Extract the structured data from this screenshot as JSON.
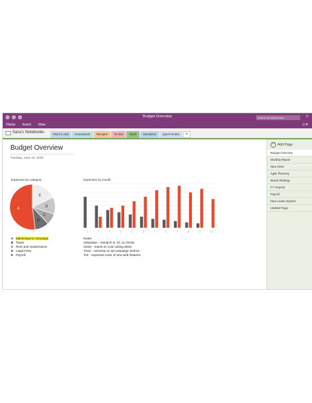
{
  "window": {
    "title": "Budget Overview",
    "search_placeholder": "Search all Notebooks",
    "user_icon": "person-icon"
  },
  "ribbon": {
    "menu": [
      "Home",
      "Insert",
      "View"
    ],
    "settings_icon": "smiley-icon"
  },
  "notebook": {
    "name": "Sara's Notebook",
    "tabs": [
      {
        "label": "Mom's visit",
        "color": "#c6d6ec"
      },
      {
        "label": "Housework",
        "color": "#bfe0e6"
      },
      {
        "label": "Recipes",
        "color": "#f6c49d"
      },
      {
        "label": "To-dos",
        "color": "#f2b3b3"
      },
      {
        "label": "Work",
        "color": "#98c387"
      },
      {
        "label": "Vacations",
        "color": "#bcd3ec"
      },
      {
        "label": "Quick Notes",
        "color": "#d3dcf0"
      }
    ],
    "add_tab_label": "+"
  },
  "page": {
    "title": "Budget Overview",
    "date": "Tuesday, June 16, 2015",
    "pie_label": "Expenses by category",
    "bar_label": "Expenses by month",
    "legend": [
      {
        "key": "A",
        "label": "Marketing/Ad campaign",
        "highlight": true
      },
      {
        "key": "B",
        "label": "Taxes",
        "highlight": false
      },
      {
        "key": "C",
        "label": "Rent and maintenance",
        "highlight": false
      },
      {
        "key": "D",
        "label": "Legal Fees",
        "highlight": false
      },
      {
        "key": "E",
        "label": "Payroll",
        "highlight": false
      }
    ],
    "notes": [
      "Notes",
      "Sebastian - research 9, 10, 11 trends",
      "Claire - report on cost cutting ideas",
      "Trent - overview on ad campaign metrics",
      "Tori - expected costs of new web features"
    ]
  },
  "pages_pane": {
    "add_page_label": "Add Page",
    "items": [
      "Budget Overview",
      "Monthly Report",
      "New Hires",
      "Agile Planning",
      "Brand Strategy",
      "FY Reports",
      "Payroll",
      "New Lease Options",
      "Untitled Page"
    ],
    "active_index": 0
  },
  "chart_data": [
    {
      "type": "pie",
      "labels": [
        "A",
        "B",
        "C",
        "D",
        "E"
      ],
      "values": [
        52,
        10,
        8,
        12,
        18
      ],
      "colors": [
        "#e64a2e",
        "#6e6e6e",
        "#a9a9a9",
        "#c7c7c7",
        "#eeeeee"
      ]
    },
    {
      "type": "bar",
      "categories": [
        "1",
        "2",
        "3",
        "4",
        "5",
        "6",
        "7",
        "8",
        "9",
        "10",
        "11",
        "12"
      ],
      "series": [
        {
          "values": [
            70,
            50,
            40,
            35,
            30,
            25,
            20,
            18,
            15,
            12,
            10,
            0
          ],
          "color": "#595959"
        },
        {
          "values": [
            0,
            25,
            45,
            50,
            60,
            70,
            85,
            92,
            95,
            80,
            88,
            65
          ],
          "color": "#e64a2e"
        }
      ],
      "ylim": [
        0,
        100
      ],
      "grid": true
    }
  ]
}
